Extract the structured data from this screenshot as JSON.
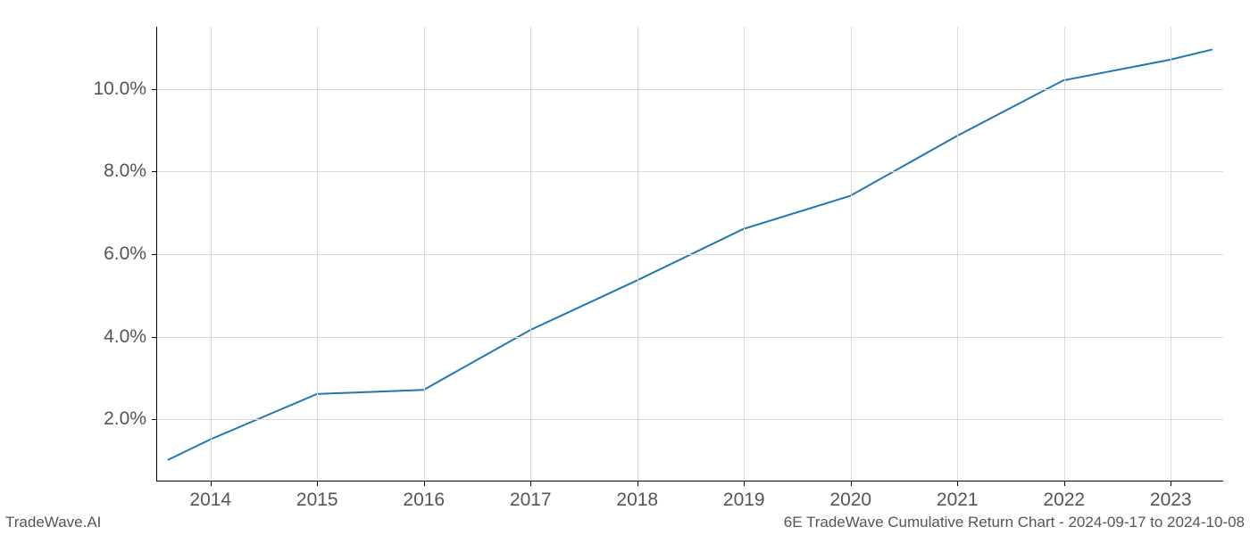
{
  "chart": {
    "type": "line",
    "x_values": [
      2013.6,
      2014,
      2015,
      2016,
      2017,
      2018,
      2019,
      2020,
      2021,
      2022,
      2023,
      2023.4
    ],
    "y_values": [
      1.0,
      1.5,
      2.6,
      2.7,
      4.15,
      5.35,
      6.6,
      7.4,
      8.85,
      10.2,
      10.7,
      10.95
    ],
    "line_color": "#1f77b4",
    "line_width": 2,
    "xlim": [
      2013.5,
      2023.5
    ],
    "ylim": [
      0.5,
      11.5
    ],
    "x_ticks": [
      2014,
      2015,
      2016,
      2017,
      2018,
      2019,
      2020,
      2021,
      2022,
      2023
    ],
    "x_tick_labels": [
      "2014",
      "2015",
      "2016",
      "2017",
      "2018",
      "2019",
      "2020",
      "2021",
      "2022",
      "2023"
    ],
    "y_ticks": [
      2,
      4,
      6,
      8,
      10
    ],
    "y_tick_labels": [
      "2.0%",
      "4.0%",
      "6.0%",
      "8.0%",
      "10.0%"
    ],
    "grid_color": "#d9d9d9",
    "axis_color": "#000000",
    "background_color": "#ffffff",
    "tick_label_color": "#555555",
    "tick_label_fontsize": 21,
    "footer_fontsize": 17,
    "footer_color": "#555555"
  },
  "footer": {
    "left": "TradeWave.AI",
    "right": "6E TradeWave Cumulative Return Chart - 2024-09-17 to 2024-10-08"
  }
}
